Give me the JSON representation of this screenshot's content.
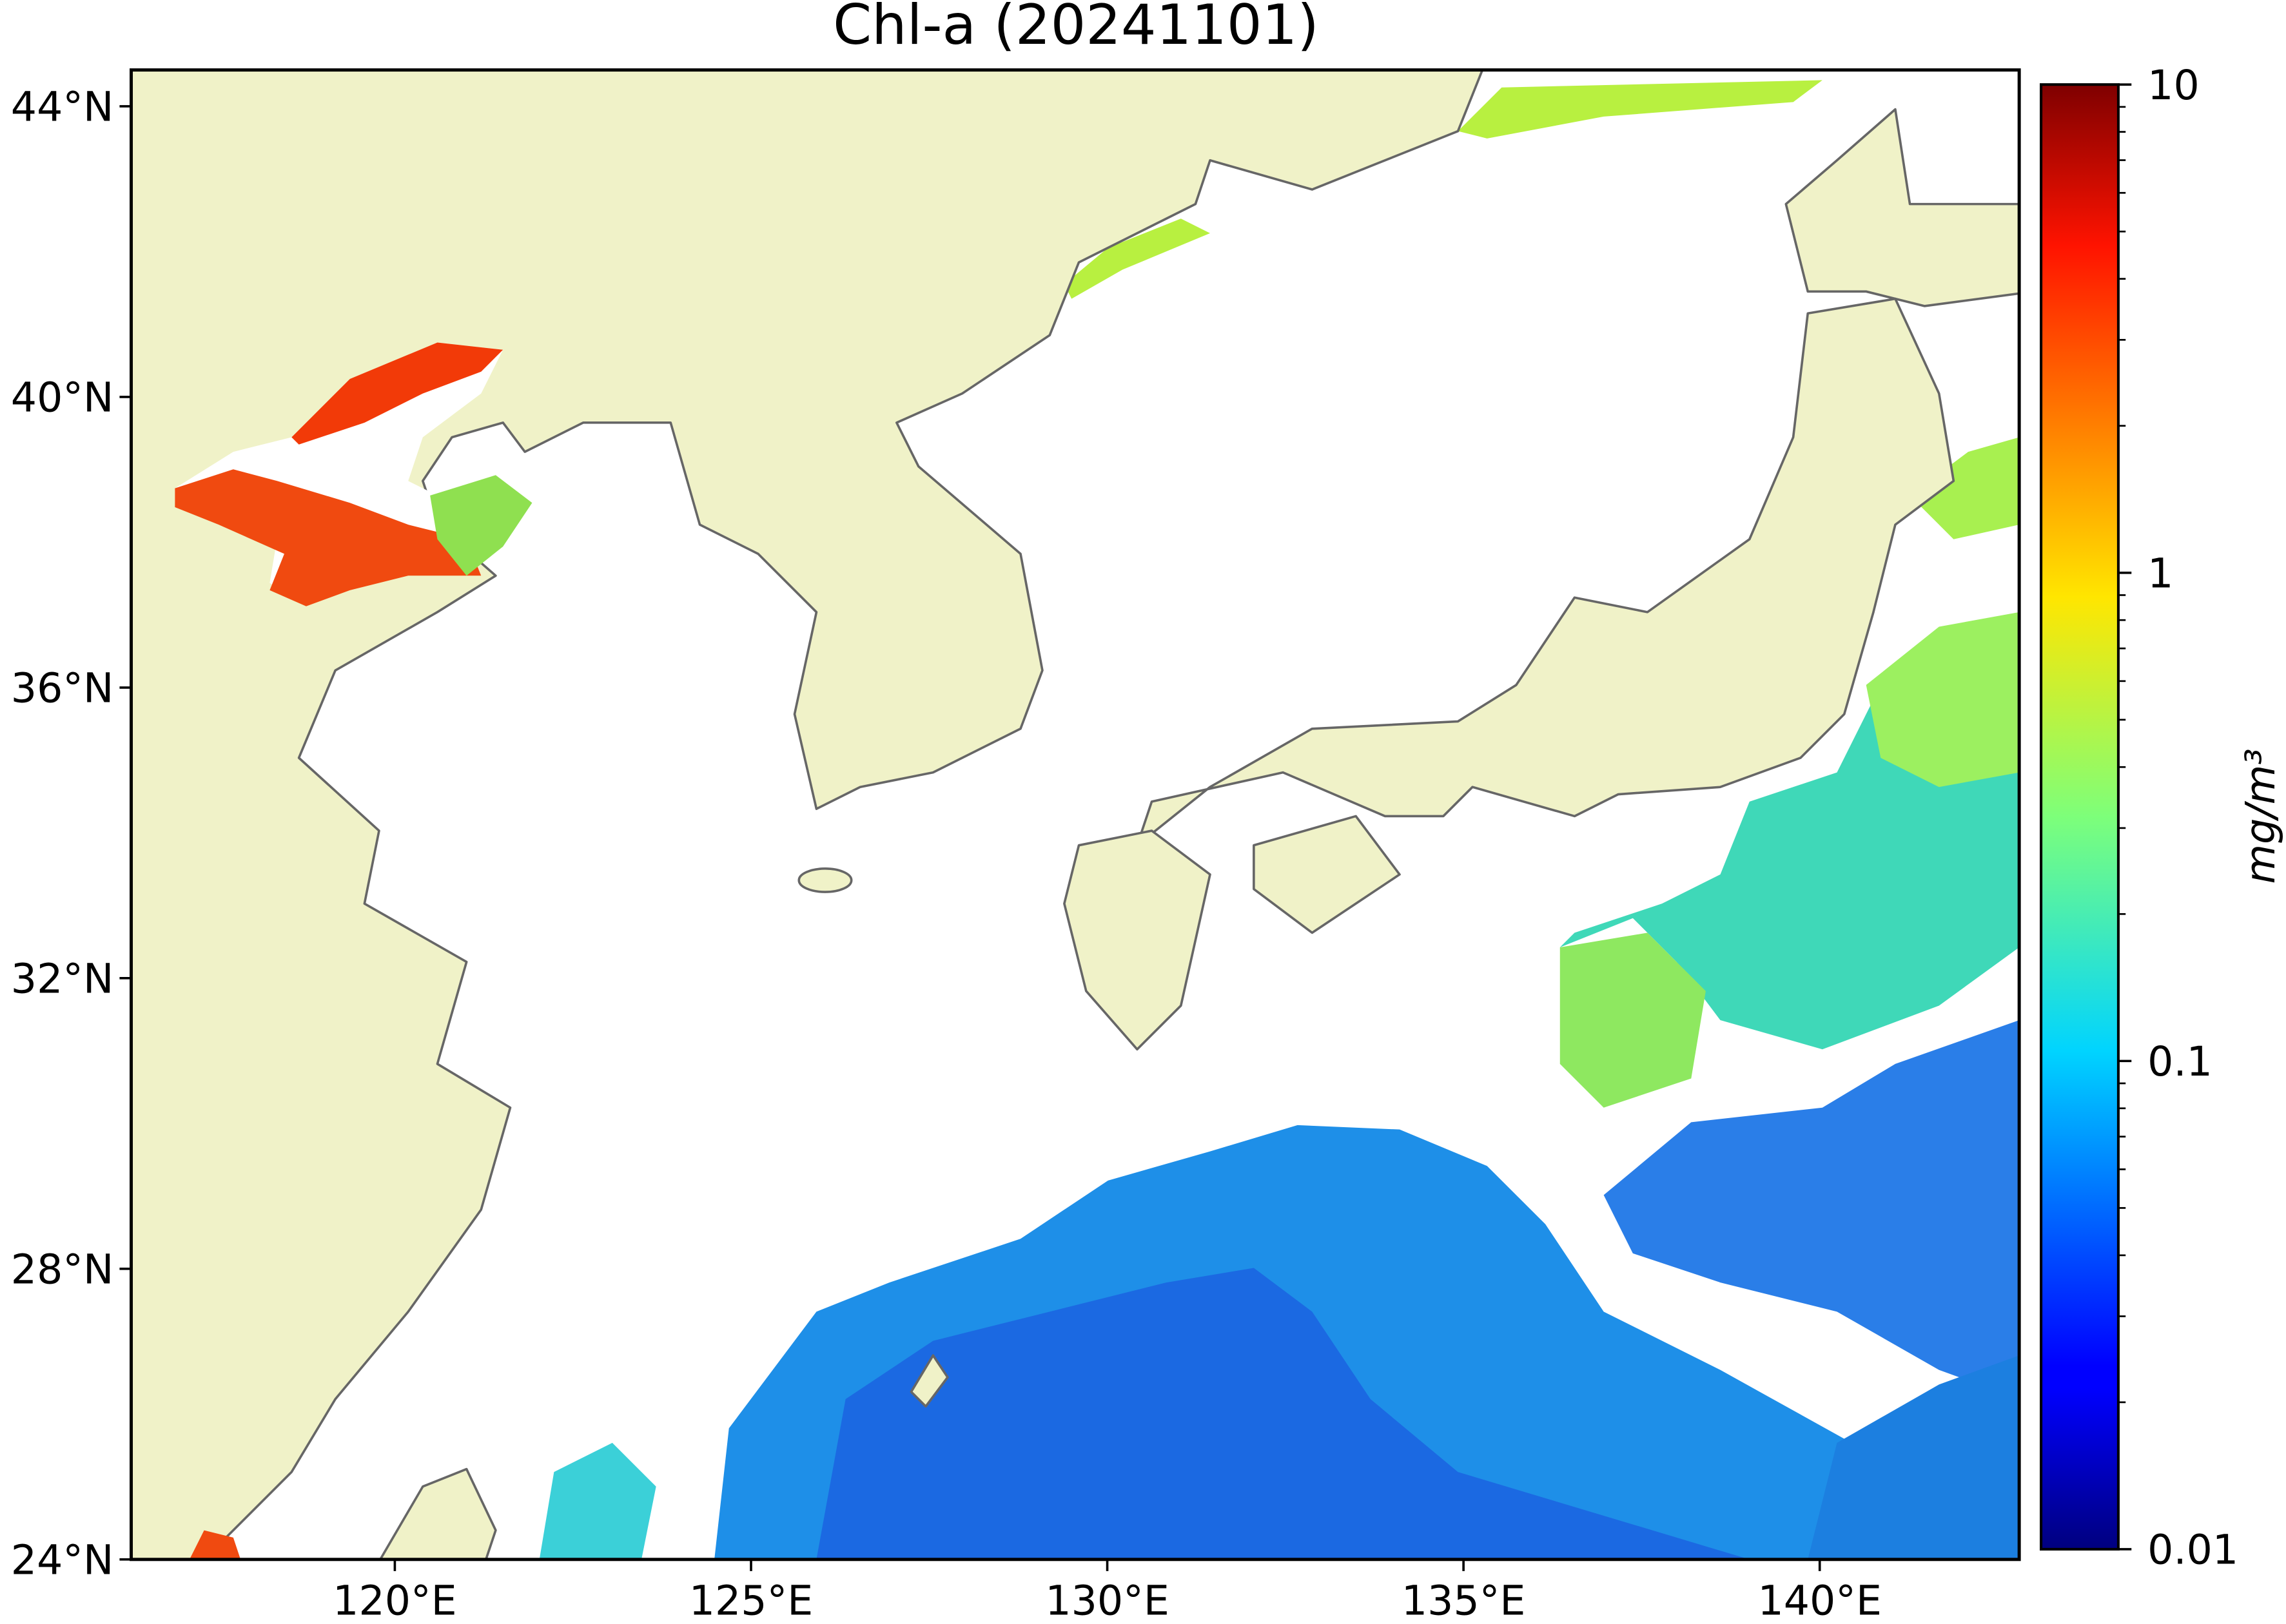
{
  "chart_data": {
    "type": "map",
    "title": "Chl-a (20241101)",
    "xlim": [
      116.3,
      142.8
    ],
    "ylim": [
      24,
      44.5
    ],
    "xticks": [
      {
        "value": 120,
        "label": "120°E"
      },
      {
        "value": 125,
        "label": "125°E"
      },
      {
        "value": 130,
        "label": "130°E"
      },
      {
        "value": 135,
        "label": "135°E"
      },
      {
        "value": 140,
        "label": "140°E"
      }
    ],
    "yticks": [
      {
        "value": 24,
        "label": "24°N"
      },
      {
        "value": 28,
        "label": "28°N"
      },
      {
        "value": 32,
        "label": "32°N"
      },
      {
        "value": 36,
        "label": "36°N"
      },
      {
        "value": 40,
        "label": "40°N"
      },
      {
        "value": 44,
        "label": "44°N"
      }
    ],
    "colorbar": {
      "label": "mg/m³",
      "lim": [
        0.01,
        10
      ],
      "log": true,
      "colormap": "jet",
      "ticks": [
        0.01,
        0.1,
        1,
        10
      ]
    }
  }
}
